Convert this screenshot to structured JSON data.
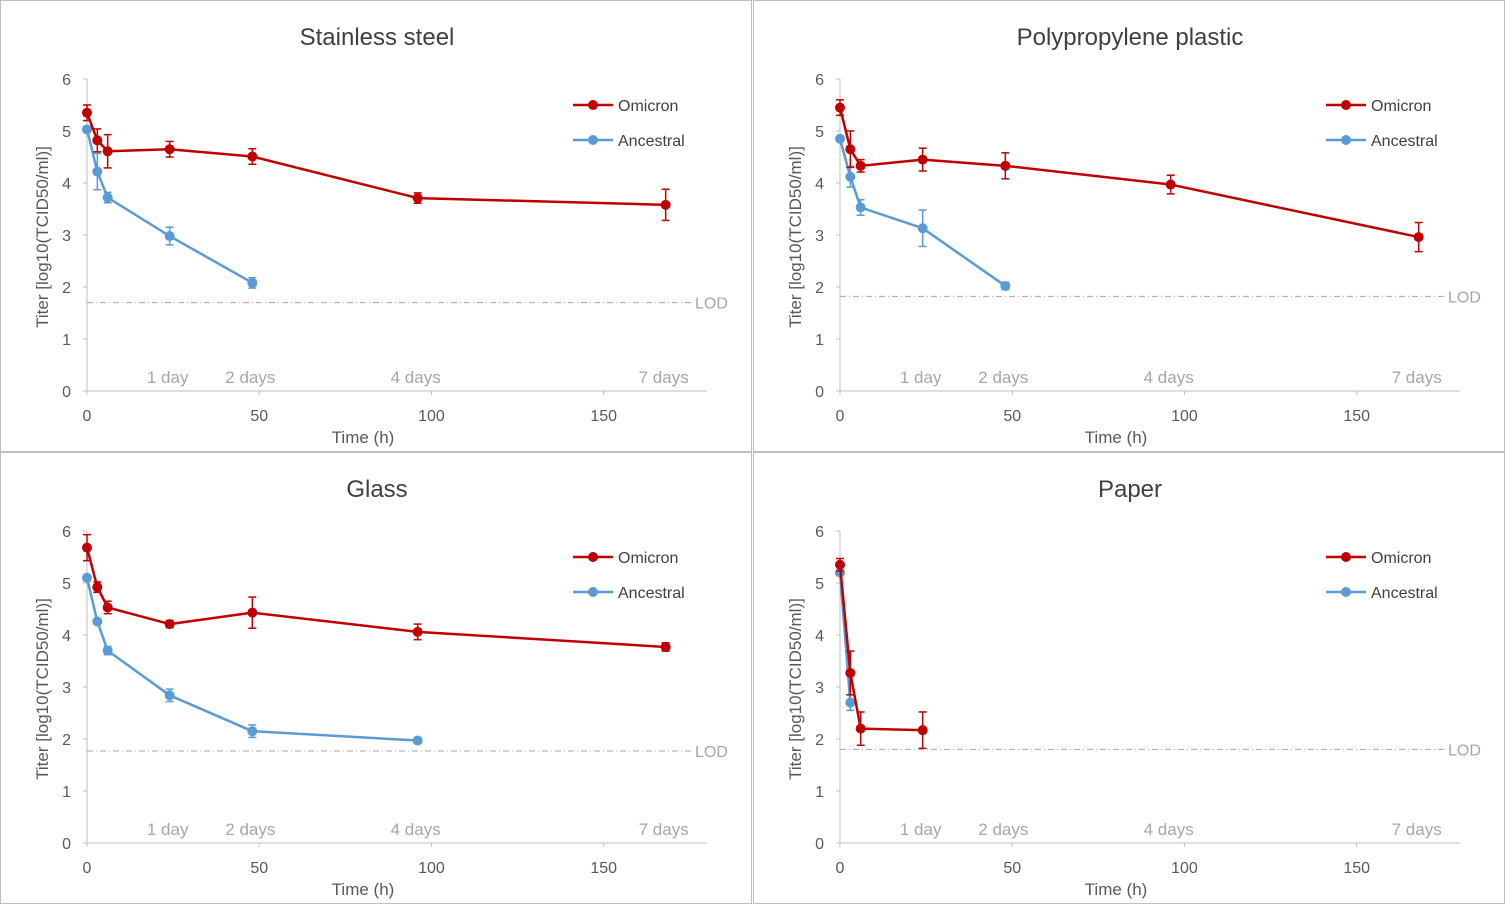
{
  "figure": {
    "xlabel": "Time (h)",
    "ylabel": "Titer [log10(TCID50/ml)]",
    "x_ticks": [
      "0",
      "50",
      "100",
      "150"
    ],
    "y_ticks": [
      "0",
      "1",
      "2",
      "3",
      "4",
      "5",
      "6"
    ],
    "lod_label": "LOD",
    "day_labels": [
      {
        "text": "1 day",
        "hours": 24
      },
      {
        "text": "2 days",
        "hours": 48
      },
      {
        "text": "4 days",
        "hours": 96
      },
      {
        "text": "7 days",
        "hours": 168
      }
    ],
    "legend": {
      "omicron": "Omicron",
      "ancestral": "Ancestral"
    },
    "colors": {
      "omicron": "#c00000",
      "ancestral": "#5b9bd5",
      "axis": "#bfbfbf",
      "lod": "#a6a6a6"
    }
  },
  "chart_data": [
    {
      "type": "line",
      "title": "Stainless steel",
      "xlabel": "Time (h)",
      "ylabel": "Titer [log10(TCID50/ml)]",
      "xlim": [
        0,
        180
      ],
      "ylim": [
        0,
        6
      ],
      "lod": 1.7,
      "series": [
        {
          "name": "Omicron",
          "x": [
            0,
            3,
            6,
            24,
            48,
            96,
            168
          ],
          "y": [
            5.35,
            4.82,
            4.61,
            4.65,
            4.51,
            3.71,
            3.58
          ],
          "err": [
            0.15,
            0.22,
            0.32,
            0.15,
            0.15,
            0.1,
            0.3
          ]
        },
        {
          "name": "Ancestral",
          "x": [
            0,
            3,
            6,
            24,
            48
          ],
          "y": [
            5.03,
            4.22,
            3.72,
            2.98,
            2.08
          ],
          "err": [
            0.05,
            0.35,
            0.1,
            0.17,
            0.1
          ]
        }
      ]
    },
    {
      "type": "line",
      "title": "Polypropylene plastic",
      "xlabel": "Time (h)",
      "ylabel": "Titer [log10(TCID50/ml)]",
      "xlim": [
        0,
        180
      ],
      "ylim": [
        0,
        6
      ],
      "lod": 1.82,
      "series": [
        {
          "name": "Omicron",
          "x": [
            0,
            3,
            6,
            24,
            48,
            96,
            168
          ],
          "y": [
            5.45,
            4.65,
            4.33,
            4.45,
            4.33,
            3.97,
            2.96
          ],
          "err": [
            0.15,
            0.35,
            0.12,
            0.22,
            0.25,
            0.18,
            0.28
          ]
        },
        {
          "name": "Ancestral",
          "x": [
            0,
            3,
            6,
            24,
            48
          ],
          "y": [
            4.85,
            4.12,
            3.53,
            3.13,
            2.02
          ],
          "err": [
            0.05,
            0.2,
            0.15,
            0.35,
            0.07
          ]
        }
      ]
    },
    {
      "type": "line",
      "title": "Glass",
      "xlabel": "Time (h)",
      "ylabel": "Titer [log10(TCID50/ml)]",
      "xlim": [
        0,
        180
      ],
      "ylim": [
        0,
        6
      ],
      "lod": 1.77,
      "series": [
        {
          "name": "Omicron",
          "x": [
            0,
            3,
            6,
            24,
            48,
            96,
            168
          ],
          "y": [
            5.68,
            4.92,
            4.53,
            4.21,
            4.43,
            4.06,
            3.77
          ],
          "err": [
            0.25,
            0.1,
            0.12,
            0.07,
            0.3,
            0.15,
            0.08
          ]
        },
        {
          "name": "Ancestral",
          "x": [
            0,
            3,
            6,
            24,
            48,
            96
          ],
          "y": [
            5.1,
            4.26,
            3.7,
            2.84,
            2.15,
            1.97
          ],
          "err": [
            0.05,
            0.05,
            0.08,
            0.12,
            0.12,
            0.05
          ]
        }
      ]
    },
    {
      "type": "line",
      "title": "Paper",
      "xlabel": "Time (h)",
      "ylabel": "Titer [log10(TCID50/ml)]",
      "xlim": [
        0,
        180
      ],
      "ylim": [
        0,
        6
      ],
      "lod": 1.8,
      "series": [
        {
          "name": "Omicron",
          "x": [
            0,
            3,
            6,
            24
          ],
          "y": [
            5.35,
            3.27,
            2.2,
            2.17
          ],
          "err": [
            0.12,
            0.42,
            0.32,
            0.35
          ]
        },
        {
          "name": "Ancestral",
          "x": [
            0,
            3
          ],
          "y": [
            5.2,
            2.7
          ],
          "err": [
            0.05,
            0.15
          ]
        }
      ]
    }
  ]
}
